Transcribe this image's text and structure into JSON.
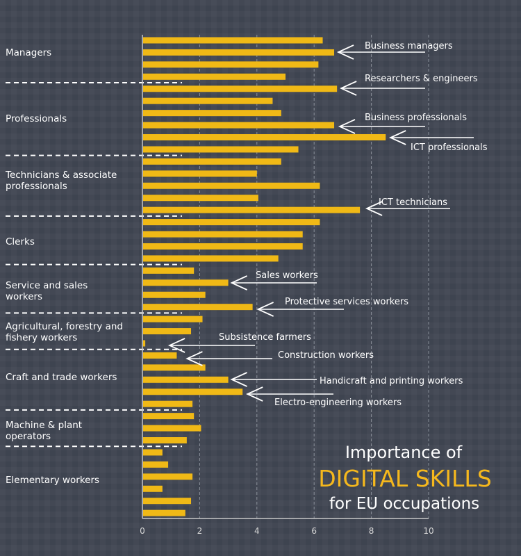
{
  "chart_data": {
    "type": "bar",
    "orientation": "horizontal",
    "title": [
      "Importance of",
      "DIGITAL SKILLS",
      "for EU occupations"
    ],
    "xlabel": "",
    "ylabel": "",
    "xlim": [
      0,
      10
    ],
    "xticks": [
      "0",
      "2",
      "4",
      "6",
      "8",
      "10"
    ],
    "grid": "vertical dashed",
    "bar_color": "#f0b916",
    "highlight_color": "#f5b81d",
    "background_color": "#3e4450",
    "groups": [
      {
        "label": "Managers",
        "values": [
          6.3,
          6.7,
          6.15,
          5.0
        ]
      },
      {
        "label": "Professionals",
        "values": [
          6.8,
          4.55,
          4.85,
          6.7,
          8.5,
          5.45
        ]
      },
      {
        "label": "Technicians & associate professionals",
        "values": [
          4.85,
          4.0,
          6.2,
          4.05,
          7.6
        ]
      },
      {
        "label": "Clerks",
        "values": [
          6.2,
          5.6,
          5.6,
          4.75
        ]
      },
      {
        "label": "Service and sales workers",
        "values": [
          1.8,
          3.0,
          2.2,
          3.85
        ]
      },
      {
        "label": "Agricultural, forestry and fishery workers",
        "values": [
          2.1,
          1.7,
          0.1
        ]
      },
      {
        "label": "Craft and trade workers",
        "values": [
          1.2,
          2.2,
          3.0,
          3.5,
          1.75
        ]
      },
      {
        "label": "Machine & plant operators",
        "values": [
          1.8,
          2.05,
          1.55
        ]
      },
      {
        "label": "Elementary workers",
        "values": [
          0.7,
          0.9,
          1.75,
          0.7,
          1.7,
          1.5
        ]
      }
    ],
    "group_label_lines": [
      [
        "Managers"
      ],
      [
        "Professionals"
      ],
      [
        "Technicians & associate",
        "professionals"
      ],
      [
        "Clerks"
      ],
      [
        "Service and sales",
        "workers"
      ],
      [
        "Agricultural, forestry and",
        "fishery workers"
      ],
      [
        "Craft and trade workers"
      ],
      [
        "Machine & plant",
        "operators"
      ],
      [
        "Elementary workers"
      ]
    ],
    "annotations": [
      {
        "label": "Business managers",
        "group": 0,
        "bar": 1
      },
      {
        "label": "Researchers & engineers",
        "group": 1,
        "bar": 0
      },
      {
        "label": "Business professionals",
        "group": 1,
        "bar": 3
      },
      {
        "label": "ICT professionals",
        "group": 1,
        "bar": 4
      },
      {
        "label": "ICT technicians",
        "group": 2,
        "bar": 4
      },
      {
        "label": "Sales workers",
        "group": 4,
        "bar": 1
      },
      {
        "label": "Protective services workers",
        "group": 4,
        "bar": 3
      },
      {
        "label": "Subsistence farmers",
        "group": 5,
        "bar": 2
      },
      {
        "label": "Construction workers",
        "group": 6,
        "bar": 0
      },
      {
        "label": "Handicraft and printing workers",
        "group": 6,
        "bar": 2
      },
      {
        "label": "Electro-engineering workers",
        "group": 6,
        "bar": 3
      }
    ]
  }
}
